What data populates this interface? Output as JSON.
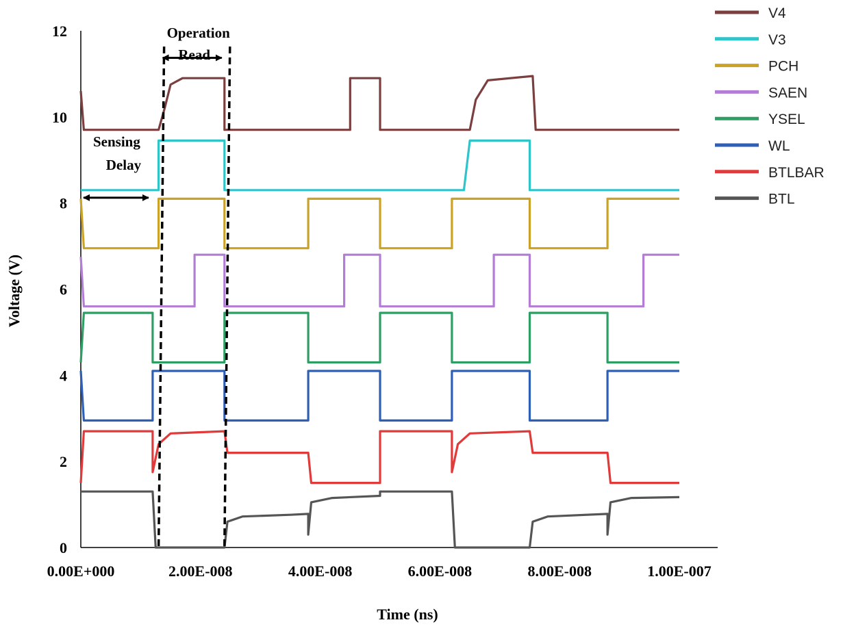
{
  "chart_data": {
    "type": "line",
    "title": "",
    "xlabel": "Time (ns)",
    "ylabel": "Voltage (V)",
    "xlim": [
      0,
      1.1e-07
    ],
    "ylim": [
      0,
      12
    ],
    "x_ticks": [
      0,
      2e-08,
      4e-08,
      6e-08,
      8e-08,
      1e-07
    ],
    "x_tick_labels": [
      "0.00E+000",
      "2.00E-008",
      "4.00E-008",
      "6.00E-008",
      "8.00E-008",
      "1.00E-007"
    ],
    "y_ticks": [
      0,
      2,
      4,
      6,
      8,
      10,
      12
    ],
    "y_tick_labels": [
      "0",
      "2",
      "4",
      "6",
      "8",
      "10",
      "12"
    ],
    "grid": false,
    "legend_position": "right",
    "series": [
      {
        "name": "V4",
        "color": "#7b3f3f",
        "points": [
          [
            0,
            10.6
          ],
          [
            5e-10,
            9.7
          ],
          [
            1.3e-08,
            9.7
          ],
          [
            1.4e-08,
            10.2
          ],
          [
            1.5e-08,
            10.75
          ],
          [
            1.7e-08,
            10.9
          ],
          [
            2.4e-08,
            10.9
          ],
          [
            2.4e-08,
            9.7
          ],
          [
            4.5e-08,
            9.7
          ],
          [
            4.5e-08,
            10.9
          ],
          [
            5e-08,
            10.9
          ],
          [
            5e-08,
            9.7
          ],
          [
            6.5e-08,
            9.7
          ],
          [
            6.6e-08,
            10.4
          ],
          [
            6.8e-08,
            10.85
          ],
          [
            7.55e-08,
            10.95
          ],
          [
            7.6e-08,
            9.7
          ],
          [
            1e-07,
            9.7
          ]
        ]
      },
      {
        "name": "V3",
        "color": "#2ec4c8",
        "points": [
          [
            0,
            8.3
          ],
          [
            1.3e-08,
            8.3
          ],
          [
            1.3e-08,
            9.45
          ],
          [
            2.4e-08,
            9.45
          ],
          [
            2.4e-08,
            8.3
          ],
          [
            6.4e-08,
            8.3
          ],
          [
            6.5e-08,
            9.45
          ],
          [
            7.5e-08,
            9.45
          ],
          [
            7.5e-08,
            8.3
          ],
          [
            1e-07,
            8.3
          ]
        ]
      },
      {
        "name": "PCH",
        "color": "#c9a227",
        "points": [
          [
            0,
            8.1
          ],
          [
            5e-10,
            6.95
          ],
          [
            1.3e-08,
            6.95
          ],
          [
            1.3e-08,
            8.1
          ],
          [
            2.4e-08,
            8.1
          ],
          [
            2.4e-08,
            6.95
          ],
          [
            3.8e-08,
            6.95
          ],
          [
            3.8e-08,
            8.1
          ],
          [
            5e-08,
            8.1
          ],
          [
            5e-08,
            6.95
          ],
          [
            6.2e-08,
            6.95
          ],
          [
            6.2e-08,
            8.1
          ],
          [
            7.5e-08,
            8.1
          ],
          [
            7.5e-08,
            6.95
          ],
          [
            8.8e-08,
            6.95
          ],
          [
            8.8e-08,
            8.1
          ],
          [
            1e-07,
            8.1
          ]
        ]
      },
      {
        "name": "SAEN",
        "color": "#b27dd4",
        "points": [
          [
            0,
            6.75
          ],
          [
            5e-10,
            5.6
          ],
          [
            1.9e-08,
            5.6
          ],
          [
            1.9e-08,
            6.8
          ],
          [
            2.4e-08,
            6.8
          ],
          [
            2.4e-08,
            5.6
          ],
          [
            4.4e-08,
            5.6
          ],
          [
            4.4e-08,
            6.8
          ],
          [
            5e-08,
            6.8
          ],
          [
            5e-08,
            5.6
          ],
          [
            6.9e-08,
            5.6
          ],
          [
            6.9e-08,
            6.8
          ],
          [
            7.5e-08,
            6.8
          ],
          [
            7.5e-08,
            5.6
          ],
          [
            9.4e-08,
            5.6
          ],
          [
            9.4e-08,
            6.8
          ],
          [
            1e-07,
            6.8
          ]
        ]
      },
      {
        "name": "YSEL",
        "color": "#2e9e64",
        "points": [
          [
            0,
            4.3
          ],
          [
            5e-10,
            5.45
          ],
          [
            1.2e-08,
            5.45
          ],
          [
            1.2e-08,
            4.3
          ],
          [
            2.4e-08,
            4.3
          ],
          [
            2.4e-08,
            5.45
          ],
          [
            3.8e-08,
            5.45
          ],
          [
            3.8e-08,
            4.3
          ],
          [
            5e-08,
            4.3
          ],
          [
            5e-08,
            5.45
          ],
          [
            6.2e-08,
            5.45
          ],
          [
            6.2e-08,
            4.3
          ],
          [
            7.5e-08,
            4.3
          ],
          [
            7.5e-08,
            5.45
          ],
          [
            8.8e-08,
            5.45
          ],
          [
            8.8e-08,
            4.3
          ],
          [
            1e-07,
            4.3
          ]
        ]
      },
      {
        "name": "WL",
        "color": "#2e5fb5",
        "points": [
          [
            0,
            4.1
          ],
          [
            5e-10,
            2.95
          ],
          [
            1.2e-08,
            2.95
          ],
          [
            1.2e-08,
            4.1
          ],
          [
            2.4e-08,
            4.1
          ],
          [
            2.4e-08,
            2.95
          ],
          [
            3.8e-08,
            2.95
          ],
          [
            3.8e-08,
            4.1
          ],
          [
            5e-08,
            4.1
          ],
          [
            5e-08,
            2.95
          ],
          [
            6.2e-08,
            2.95
          ],
          [
            6.2e-08,
            4.1
          ],
          [
            7.5e-08,
            4.1
          ],
          [
            7.5e-08,
            2.95
          ],
          [
            8.8e-08,
            2.95
          ],
          [
            8.8e-08,
            4.1
          ],
          [
            1e-07,
            4.1
          ]
        ]
      },
      {
        "name": "BTLBAR",
        "color": "#e03a3a",
        "points": [
          [
            0,
            1.5
          ],
          [
            5e-10,
            2.7
          ],
          [
            1.2e-08,
            2.7
          ],
          [
            1.2e-08,
            1.75
          ],
          [
            1.3e-08,
            2.4
          ],
          [
            1.5e-08,
            2.65
          ],
          [
            2.4e-08,
            2.7
          ],
          [
            2.45e-08,
            2.2
          ],
          [
            3.8e-08,
            2.2
          ],
          [
            3.85e-08,
            1.5
          ],
          [
            5e-08,
            1.5
          ],
          [
            5e-08,
            2.7
          ],
          [
            6.2e-08,
            2.7
          ],
          [
            6.2e-08,
            1.75
          ],
          [
            6.3e-08,
            2.4
          ],
          [
            6.5e-08,
            2.65
          ],
          [
            7.5e-08,
            2.7
          ],
          [
            7.55e-08,
            2.2
          ],
          [
            8.8e-08,
            2.2
          ],
          [
            8.85e-08,
            1.5
          ],
          [
            1e-07,
            1.5
          ]
        ]
      },
      {
        "name": "BTL",
        "color": "#555555",
        "points": [
          [
            0,
            1.3
          ],
          [
            1.2e-08,
            1.3
          ],
          [
            1.25e-08,
            0.0
          ],
          [
            2.4e-08,
            0.0
          ],
          [
            2.45e-08,
            0.6
          ],
          [
            2.7e-08,
            0.72
          ],
          [
            3.5e-08,
            0.76
          ],
          [
            3.8e-08,
            0.78
          ],
          [
            3.8e-08,
            0.3
          ],
          [
            3.85e-08,
            1.05
          ],
          [
            4.2e-08,
            1.15
          ],
          [
            5e-08,
            1.2
          ],
          [
            5e-08,
            1.3
          ],
          [
            6.2e-08,
            1.3
          ],
          [
            6.25e-08,
            0.0
          ],
          [
            7.5e-08,
            0.0
          ],
          [
            7.55e-08,
            0.6
          ],
          [
            7.8e-08,
            0.72
          ],
          [
            8.8e-08,
            0.78
          ],
          [
            8.8e-08,
            0.3
          ],
          [
            8.85e-08,
            1.05
          ],
          [
            9.2e-08,
            1.15
          ],
          [
            1e-07,
            1.17
          ]
        ]
      }
    ],
    "annotations": {
      "operation_line1": "Operation",
      "operation_line2": "Read",
      "sensing_line1": "Sensing",
      "sensing_line2": "Delay",
      "dashed_x": [
        1.3e-08,
        2.4e-08
      ],
      "sensing_arrow_x": [
        0,
        1.2e-08
      ],
      "sensing_arrow_y": 8.6,
      "operation_arrow_y": 11.5
    }
  }
}
